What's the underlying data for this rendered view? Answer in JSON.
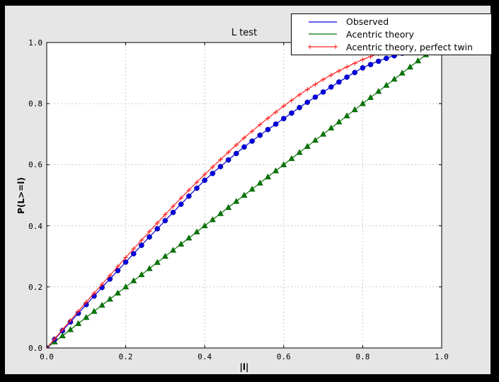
{
  "window": {
    "frame_color": "#000000",
    "figure_bg": "#e6e6e6",
    "plot_bg": "#ffffff",
    "grid_color": "#c8c8c8",
    "axis_color": "#000000"
  },
  "title": "L test",
  "xlabel": "|l|",
  "ylabel": "P(L>=l)",
  "xtick_labels": [
    "0.0",
    "0.2",
    "0.4",
    "0.6",
    "0.8",
    "1.0"
  ],
  "ytick_labels": [
    "0.0",
    "0.2",
    "0.4",
    "0.6",
    "0.8",
    "1.0"
  ],
  "legend": {
    "items": [
      {
        "label": "Observed",
        "color": "#0000e0",
        "marker": "none"
      },
      {
        "label": "Acentric theory",
        "color": "#007700",
        "marker": "none"
      },
      {
        "label": "Acentric theory, perfect twin",
        "color": "#ff2222",
        "marker": "plus"
      }
    ]
  },
  "chart_data": {
    "type": "line",
    "title": "L test",
    "xlabel": "|l|",
    "ylabel": "P(L>=l)",
    "xlim": [
      0.0,
      1.0
    ],
    "ylim": [
      0.0,
      1.0
    ],
    "xticks": [
      0.0,
      0.2,
      0.4,
      0.6,
      0.8,
      1.0
    ],
    "yticks": [
      0.0,
      0.2,
      0.4,
      0.6,
      0.8,
      1.0
    ],
    "grid": true,
    "grid_style": "dashed",
    "legend_position": "upper right, overlapping top of axes",
    "marker_interval": 0.02,
    "x": [
      0.0,
      0.05,
      0.1,
      0.15,
      0.2,
      0.25,
      0.3,
      0.35,
      0.4,
      0.45,
      0.5,
      0.55,
      0.6,
      0.65,
      0.7,
      0.75,
      0.8,
      0.85,
      0.9,
      0.95,
      1.0
    ],
    "series": [
      {
        "name": "Observed",
        "color": "#0000e0",
        "marker": "circle",
        "values": [
          0.0,
          0.071,
          0.142,
          0.212,
          0.281,
          0.35,
          0.417,
          0.484,
          0.549,
          0.605,
          0.658,
          0.706,
          0.751,
          0.796,
          0.838,
          0.879,
          0.917,
          0.944,
          0.965,
          0.981,
          0.995
        ]
      },
      {
        "name": "Acentric theory",
        "color": "#007700",
        "marker": "triangle-up",
        "values": [
          0.0,
          0.05,
          0.1,
          0.15,
          0.2,
          0.25,
          0.3,
          0.35,
          0.4,
          0.45,
          0.5,
          0.55,
          0.6,
          0.65,
          0.7,
          0.75,
          0.8,
          0.85,
          0.9,
          0.95,
          1.0
        ]
      },
      {
        "name": "Acentric theory, perfect twin",
        "color": "#ff2222",
        "marker": "plus",
        "values": [
          0.0,
          0.075,
          0.15,
          0.223,
          0.296,
          0.367,
          0.437,
          0.504,
          0.568,
          0.629,
          0.688,
          0.742,
          0.792,
          0.838,
          0.879,
          0.914,
          0.944,
          0.968,
          0.986,
          0.996,
          1.0
        ]
      }
    ]
  }
}
